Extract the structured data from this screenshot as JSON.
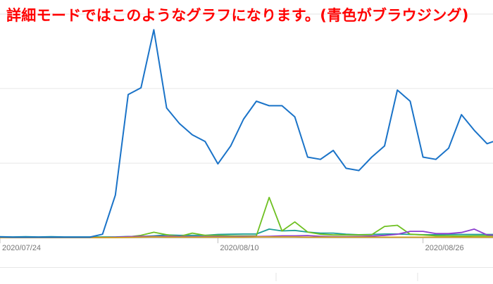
{
  "chart_data": {
    "type": "line",
    "title": "詳細モードではこのようなグラフになります。(青色がブラウジング)",
    "xlabel": "",
    "ylabel": "",
    "x_tick_labels": [
      {
        "index": 0,
        "label": "2020/07/24"
      },
      {
        "index": 17,
        "label": "2020/08/10"
      },
      {
        "index": 33,
        "label": "2020/08/26"
      }
    ],
    "ylim": [
      0,
      100
    ],
    "grid": true,
    "gridlines_y": [
      0,
      33.3,
      66.7,
      100
    ],
    "series": [
      {
        "color": "#1a73c8",
        "values": [
          0.3,
          0.2,
          0.2,
          0.2,
          0.2,
          0.2,
          0.2,
          0.2,
          1.5,
          19,
          64,
          67,
          93,
          58,
          51,
          46,
          43,
          33,
          41,
          53,
          61,
          59,
          59,
          54,
          36,
          35,
          39,
          31,
          30,
          36,
          41,
          66,
          61,
          36,
          35,
          40,
          55,
          48,
          42,
          44
        ]
      },
      {
        "color": "#1e9e96",
        "values": [
          0.4,
          0.3,
          0.4,
          0.3,
          0.4,
          0.3,
          0.3,
          0.3,
          0.3,
          0.3,
          0.5,
          0.5,
          0.8,
          1.2,
          1,
          1,
          1,
          1.4,
          1.5,
          1.6,
          1.6,
          3.8,
          3,
          3.2,
          2.5,
          2,
          2,
          1.5,
          1.3,
          1.4,
          1.6,
          1.6,
          1.4,
          1.3,
          1.3,
          1.4,
          1.4,
          1.4,
          1.4,
          1.4
        ]
      },
      {
        "color": "#6ec021",
        "values": [
          0.1,
          0.1,
          0.1,
          0.1,
          0.1,
          0.1,
          0.1,
          0.1,
          0.1,
          0.1,
          0.3,
          1,
          2.4,
          1.3,
          0.5,
          2,
          1,
          1,
          0.8,
          0.8,
          0.8,
          18,
          3,
          7,
          2.5,
          1.5,
          1.2,
          1.2,
          1.2,
          1.3,
          5,
          5.5,
          1.5,
          1.2,
          0.8,
          0.8,
          0.7,
          0.8,
          0.8,
          0.8
        ]
      },
      {
        "color": "#8d3fcf",
        "values": [
          0,
          0,
          0,
          0,
          0,
          0,
          0,
          0,
          0,
          0.2,
          0.4,
          0.6,
          0.5,
          0.6,
          0.5,
          0.4,
          0.4,
          0.5,
          0.4,
          0.5,
          0.5,
          0.6,
          0.8,
          0.8,
          0.9,
          0.6,
          0.4,
          0.4,
          0.5,
          0.7,
          1,
          1.5,
          2.8,
          2.8,
          1.8,
          1.8,
          2.3,
          3.8,
          1.2,
          1
        ]
      },
      {
        "color": "#d7a21a",
        "values": [
          0,
          0,
          0,
          0,
          0,
          0,
          0,
          0,
          0,
          0,
          0.1,
          0.2,
          0.3,
          0.2,
          0.2,
          0.2,
          0.2,
          0.2,
          0.2,
          0.2,
          0.3,
          0.3,
          0.3,
          0.3,
          0.2,
          0.2,
          0.2,
          0.2,
          0.2,
          0.2,
          0.2,
          0.2,
          0.2,
          0.2,
          0.2,
          0.2,
          0.2,
          0.2,
          0.2,
          0.2
        ]
      }
    ]
  },
  "colors": {
    "background": "#ffffff",
    "title": "#ff0000",
    "grid": "#e6e6e6",
    "axis": "#bdbdbd",
    "tick_text": "#757575"
  }
}
